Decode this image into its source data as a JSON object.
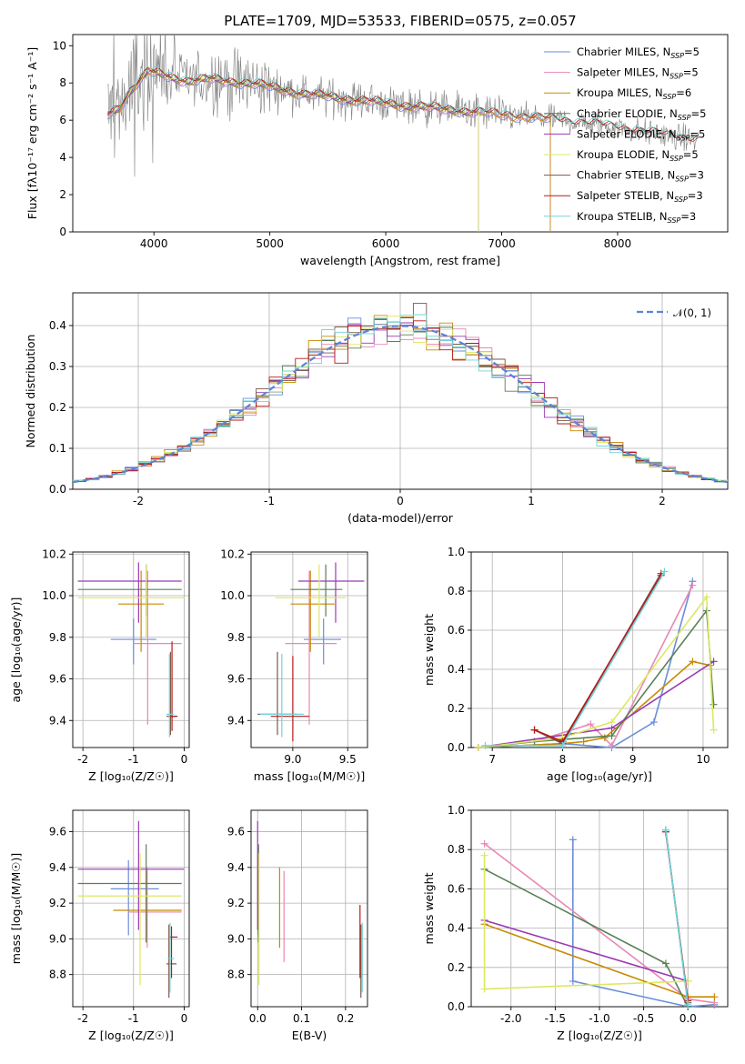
{
  "colors": [
    "#6a8ed8",
    "#e888b4",
    "#c88a00",
    "#5a8055",
    "#9a3ab5",
    "#dde860",
    "#7a5a4a",
    "#b81818",
    "#72d4d8"
  ],
  "spectrum": {
    "title": "PLATE=1709, MJD=53533, FIBERID=0575, z=0.057",
    "xlabel": "wavelength [Angstrom, rest frame]",
    "ylabel": "Flux [fλ10⁻¹⁷ erg cm⁻² s⁻¹ A⁻¹]",
    "xlim": [
      3300,
      8950
    ],
    "ylim": [
      0,
      10.6
    ],
    "xticks": [
      4000,
      5000,
      6000,
      7000,
      8000
    ],
    "yticks": [
      0,
      2,
      4,
      6,
      8,
      10
    ],
    "models": [
      {
        "label": "Chabrier MILES, N",
        "sub": "SSP",
        "n": "=5",
        "end": 7420
      },
      {
        "label": "Salpeter MILES, N",
        "sub": "SSP",
        "n": "=5",
        "end": 7420
      },
      {
        "label": "Kroupa MILES, N",
        "sub": "SSP",
        "n": "=6",
        "end": 7420
      },
      {
        "label": "Chabrier ELODIE, N",
        "sub": "SSP",
        "n": "=5",
        "end": 6800
      },
      {
        "label": "Salpeter ELODIE, N",
        "sub": "SSP",
        "n": "=5",
        "end": 6800
      },
      {
        "label": "Kroupa ELODIE, N",
        "sub": "SSP",
        "n": "=5",
        "end": 6800
      },
      {
        "label": "Chabrier STELIB, N",
        "sub": "SSP",
        "n": "=3",
        "end": 8700
      },
      {
        "label": "Salpeter STELIB, N",
        "sub": "SSP",
        "n": "=3",
        "end": 8700
      },
      {
        "label": "Kroupa STELIB, N",
        "sub": "SSP",
        "n": "=3",
        "end": 8700
      }
    ],
    "continuum": [
      [
        3600,
        6.3
      ],
      [
        3700,
        6.7
      ],
      [
        3800,
        7.6
      ],
      [
        3950,
        8.6
      ],
      [
        4100,
        8.4
      ],
      [
        4300,
        8.1
      ],
      [
        4500,
        8.2
      ],
      [
        4800,
        8.0
      ],
      [
        5000,
        7.8
      ],
      [
        5300,
        7.4
      ],
      [
        5600,
        7.2
      ],
      [
        6000,
        6.9
      ],
      [
        6500,
        6.6
      ],
      [
        7000,
        6.3
      ],
      [
        7500,
        6.0
      ],
      [
        8000,
        5.6
      ],
      [
        8300,
        5.3
      ],
      [
        8500,
        5.1
      ],
      [
        8700,
        4.9
      ]
    ]
  },
  "residuals": {
    "xlabel": "(data-model)/error",
    "ylabel": "Normed distribution",
    "xlim": [
      -2.5,
      2.5
    ],
    "ylim": [
      0,
      0.48
    ],
    "xticks": [
      -2,
      -1,
      0,
      1,
      2
    ],
    "yticks": [
      0.0,
      0.1,
      0.2,
      0.3,
      0.4
    ],
    "legend": "𝒩(0, 1)"
  },
  "age_Z": {
    "xlabel": "Z [log₁₀(Z/Z☉)]",
    "ylabel": "age  [log₁₀(age/yr)]",
    "xlim": [
      -2.2,
      0.1
    ],
    "ylim": [
      9.27,
      10.21
    ],
    "xticks": [
      -2,
      -1,
      0
    ],
    "yticks": [
      9.4,
      9.6,
      9.8,
      10.0,
      10.2
    ],
    "bars": [
      {
        "x": -1.0,
        "y": 9.79,
        "xlo": -1.45,
        "xhi": -0.55,
        "ylo": 9.67,
        "yhi": 9.89
      },
      {
        "x": -0.72,
        "y": 9.77,
        "xlo": -1.0,
        "xhi": -0.05,
        "ylo": 9.38,
        "yhi": 10.12
      },
      {
        "x": -0.85,
        "y": 9.96,
        "xlo": -1.3,
        "xhi": -0.4,
        "ylo": 9.73,
        "yhi": 10.12
      },
      {
        "x": -0.75,
        "y": 10.03,
        "xlo": -2.1,
        "xhi": -0.05,
        "ylo": 9.9,
        "yhi": 10.15
      },
      {
        "x": -0.9,
        "y": 10.07,
        "xlo": -2.1,
        "xhi": -0.05,
        "ylo": 9.87,
        "yhi": 10.16
      },
      {
        "x": -0.75,
        "y": 9.99,
        "xlo": -2.1,
        "xhi": 0.0,
        "ylo": 9.8,
        "yhi": 10.15
      },
      {
        "x": -0.27,
        "y": 9.42,
        "xlo": -0.35,
        "xhi": -0.15,
        "ylo": 9.33,
        "yhi": 9.73
      },
      {
        "x": -0.24,
        "y": 9.42,
        "xlo": -0.3,
        "xhi": -0.13,
        "ylo": 9.35,
        "yhi": 9.78
      },
      {
        "x": -0.29,
        "y": 9.43,
        "xlo": -0.35,
        "xhi": -0.2,
        "ylo": 9.32,
        "yhi": 9.72
      }
    ]
  },
  "age_mass": {
    "xlabel": "mass [log₁₀(M/M☉)]",
    "xlim": [
      8.62,
      9.68
    ],
    "ylim": [
      9.27,
      10.21
    ],
    "xticks": [
      9.0,
      9.5
    ],
    "yticks": [
      9.4,
      9.6,
      9.8,
      10.0,
      10.2
    ],
    "bars": [
      {
        "x": 9.28,
        "y": 9.79,
        "xlo": 9.1,
        "xhi": 9.44,
        "ylo": 9.67,
        "yhi": 9.89
      },
      {
        "x": 9.15,
        "y": 9.77,
        "xlo": 8.93,
        "xhi": 9.4,
        "ylo": 9.38,
        "yhi": 10.12
      },
      {
        "x": 9.16,
        "y": 9.96,
        "xlo": 8.98,
        "xhi": 9.38,
        "ylo": 9.73,
        "yhi": 10.12
      },
      {
        "x": 9.3,
        "y": 10.03,
        "xlo": 8.98,
        "xhi": 9.45,
        "ylo": 9.9,
        "yhi": 10.15
      },
      {
        "x": 9.39,
        "y": 10.07,
        "xlo": 9.05,
        "xhi": 9.65,
        "ylo": 9.87,
        "yhi": 10.16
      },
      {
        "x": 9.24,
        "y": 9.99,
        "xlo": 8.84,
        "xhi": 9.48,
        "ylo": 9.8,
        "yhi": 10.15
      },
      {
        "x": 8.86,
        "y": 9.43,
        "xlo": 8.68,
        "xhi": 9.04,
        "ylo": 9.33,
        "yhi": 9.73
      },
      {
        "x": 9.0,
        "y": 9.42,
        "xlo": 8.8,
        "xhi": 9.15,
        "ylo": 9.3,
        "yhi": 9.71
      },
      {
        "x": 8.9,
        "y": 9.43,
        "xlo": 8.7,
        "xhi": 9.1,
        "ylo": 9.32,
        "yhi": 9.72
      }
    ]
  },
  "mw_age": {
    "xlabel": "age  [log₁₀(age/yr)]",
    "ylabel": "mass weight",
    "xlim": [
      6.7,
      10.35
    ],
    "ylim": [
      0,
      1.0
    ],
    "xticks": [
      7,
      8,
      9,
      10
    ],
    "yticks": [
      0.0,
      0.2,
      0.4,
      0.6,
      0.8,
      1.0
    ],
    "series": [
      [
        [
          6.8,
          0
        ],
        [
          8.0,
          0.02
        ],
        [
          8.7,
          0.0
        ],
        [
          9.3,
          0.13
        ],
        [
          9.85,
          0.85
        ]
      ],
      [
        [
          6.8,
          0
        ],
        [
          7.6,
          0.03
        ],
        [
          8.4,
          0.12
        ],
        [
          8.7,
          0.01
        ],
        [
          9.85,
          0.83
        ]
      ],
      [
        [
          6.8,
          0
        ],
        [
          8.0,
          0.02
        ],
        [
          8.3,
          0.03
        ],
        [
          8.6,
          0.05
        ],
        [
          9.85,
          0.44
        ],
        [
          10.1,
          0.42
        ]
      ],
      [
        [
          6.8,
          0
        ],
        [
          7.6,
          0.03
        ],
        [
          8.7,
          0.06
        ],
        [
          10.05,
          0.7
        ],
        [
          10.15,
          0.22
        ]
      ],
      [
        [
          6.8,
          0
        ],
        [
          8.7,
          0.1
        ],
        [
          10.15,
          0.44
        ]
      ],
      [
        [
          6.8,
          0
        ],
        [
          8.0,
          0.05
        ],
        [
          8.7,
          0.13
        ],
        [
          10.05,
          0.77
        ],
        [
          10.15,
          0.09
        ]
      ],
      [
        [
          7.6,
          0.09
        ],
        [
          8.0,
          0.02
        ],
        [
          9.4,
          0.89
        ]
      ],
      [
        [
          7.6,
          0.09
        ],
        [
          8.0,
          0.03
        ],
        [
          9.4,
          0.88
        ]
      ],
      [
        [
          6.9,
          0.01
        ],
        [
          8.0,
          0.01
        ],
        [
          9.45,
          0.9
        ]
      ]
    ]
  },
  "mass_Z": {
    "xlabel": "Z [log₁₀(Z/Z☉)]",
    "ylabel": "mass [log₁₀(M/M☉)]",
    "xlim": [
      -2.2,
      0.1
    ],
    "ylim": [
      8.62,
      9.72
    ],
    "xticks": [
      -2,
      -1,
      0
    ],
    "yticks": [
      8.8,
      9.0,
      9.2,
      9.4,
      9.6
    ],
    "bars": [
      {
        "x": -1.1,
        "y": 9.28,
        "xlo": -1.45,
        "xhi": -0.5,
        "ylo": 9.02,
        "yhi": 9.44
      },
      {
        "x": -0.73,
        "y": 9.15,
        "xlo": -1.1,
        "xhi": -0.05,
        "ylo": 8.95,
        "yhi": 9.4
      },
      {
        "x": -0.75,
        "y": 9.16,
        "xlo": -1.4,
        "xhi": -0.05,
        "ylo": 8.98,
        "yhi": 9.38
      },
      {
        "x": -0.75,
        "y": 9.31,
        "xlo": -2.1,
        "xhi": -0.05,
        "ylo": 8.98,
        "yhi": 9.53
      },
      {
        "x": -0.9,
        "y": 9.39,
        "xlo": -2.1,
        "xhi": 0.0,
        "ylo": 9.05,
        "yhi": 9.66
      },
      {
        "x": -0.87,
        "y": 9.24,
        "xlo": -2.1,
        "xhi": -0.05,
        "ylo": 8.74,
        "yhi": 9.48
      },
      {
        "x": -0.3,
        "y": 8.86,
        "xlo": -0.35,
        "xhi": -0.15,
        "ylo": 8.67,
        "yhi": 9.08
      },
      {
        "x": -0.25,
        "y": 9.01,
        "xlo": -0.3,
        "xhi": -0.13,
        "ylo": 8.78,
        "yhi": 9.07
      },
      {
        "x": -0.28,
        "y": 8.89,
        "xlo": -0.33,
        "xhi": -0.2,
        "ylo": 8.7,
        "yhi": 9.09
      }
    ]
  },
  "mass_ebv": {
    "xlabel": "E(B-V)",
    "xlim": [
      -0.015,
      0.25
    ],
    "ylim": [
      8.62,
      9.72
    ],
    "xticks": [
      0.0,
      0.1,
      0.2
    ],
    "yticks": [
      8.8,
      9.0,
      9.2,
      9.4,
      9.6
    ],
    "bars": [
      {
        "x": 0.001,
        "ylo": 9.02,
        "yhi": 9.44
      },
      {
        "x": 0.06,
        "ylo": 8.87,
        "yhi": 9.38
      },
      {
        "x": 0.05,
        "ylo": 8.95,
        "yhi": 9.4
      },
      {
        "x": 0.002,
        "ylo": 8.98,
        "yhi": 9.53
      },
      {
        "x": 0.0,
        "ylo": 9.05,
        "yhi": 9.66
      },
      {
        "x": 0.003,
        "ylo": 8.74,
        "yhi": 9.48
      },
      {
        "x": 0.235,
        "ylo": 8.67,
        "yhi": 9.08
      },
      {
        "x": 0.233,
        "ylo": 8.78,
        "yhi": 9.19
      },
      {
        "x": 0.238,
        "ylo": 8.7,
        "yhi": 9.09
      }
    ]
  },
  "mw_Z": {
    "xlabel": "Z [log₁₀(Z/Z☉)]",
    "ylabel": "mass weight",
    "xlim": [
      -2.45,
      0.45
    ],
    "ylim": [
      0,
      1.0
    ],
    "xticks": [
      -2.0,
      -1.5,
      -1.0,
      -0.5,
      0.0
    ],
    "yticks": [
      0.0,
      0.2,
      0.4,
      0.6,
      0.8,
      1.0
    ],
    "series": [
      [
        [
          -1.3,
          0.85
        ],
        [
          -1.3,
          0.13
        ],
        [
          0.0,
          0.0
        ],
        [
          0.3,
          0.01
        ]
      ],
      [
        [
          -2.3,
          0.83
        ],
        [
          0.0,
          0.04
        ],
        [
          0.3,
          0.02
        ]
      ],
      [
        [
          -2.3,
          0.42
        ],
        [
          0.0,
          0.05
        ],
        [
          0.3,
          0.05
        ]
      ],
      [
        [
          -2.3,
          0.7
        ],
        [
          -0.25,
          0.22
        ],
        [
          0.0,
          0.0
        ]
      ],
      [
        [
          -2.3,
          0.44
        ],
        [
          0.0,
          0.13
        ]
      ],
      [
        [
          -2.3,
          0.77
        ],
        [
          -2.3,
          0.09
        ],
        [
          0.0,
          0.13
        ]
      ],
      [
        [
          -0.25,
          0.9
        ],
        [
          0.0,
          0.02
        ]
      ],
      [
        [
          -0.25,
          0.89
        ],
        [
          0.0,
          0.03
        ]
      ],
      [
        [
          -0.25,
          0.9
        ],
        [
          0.0,
          0.01
        ]
      ]
    ]
  }
}
